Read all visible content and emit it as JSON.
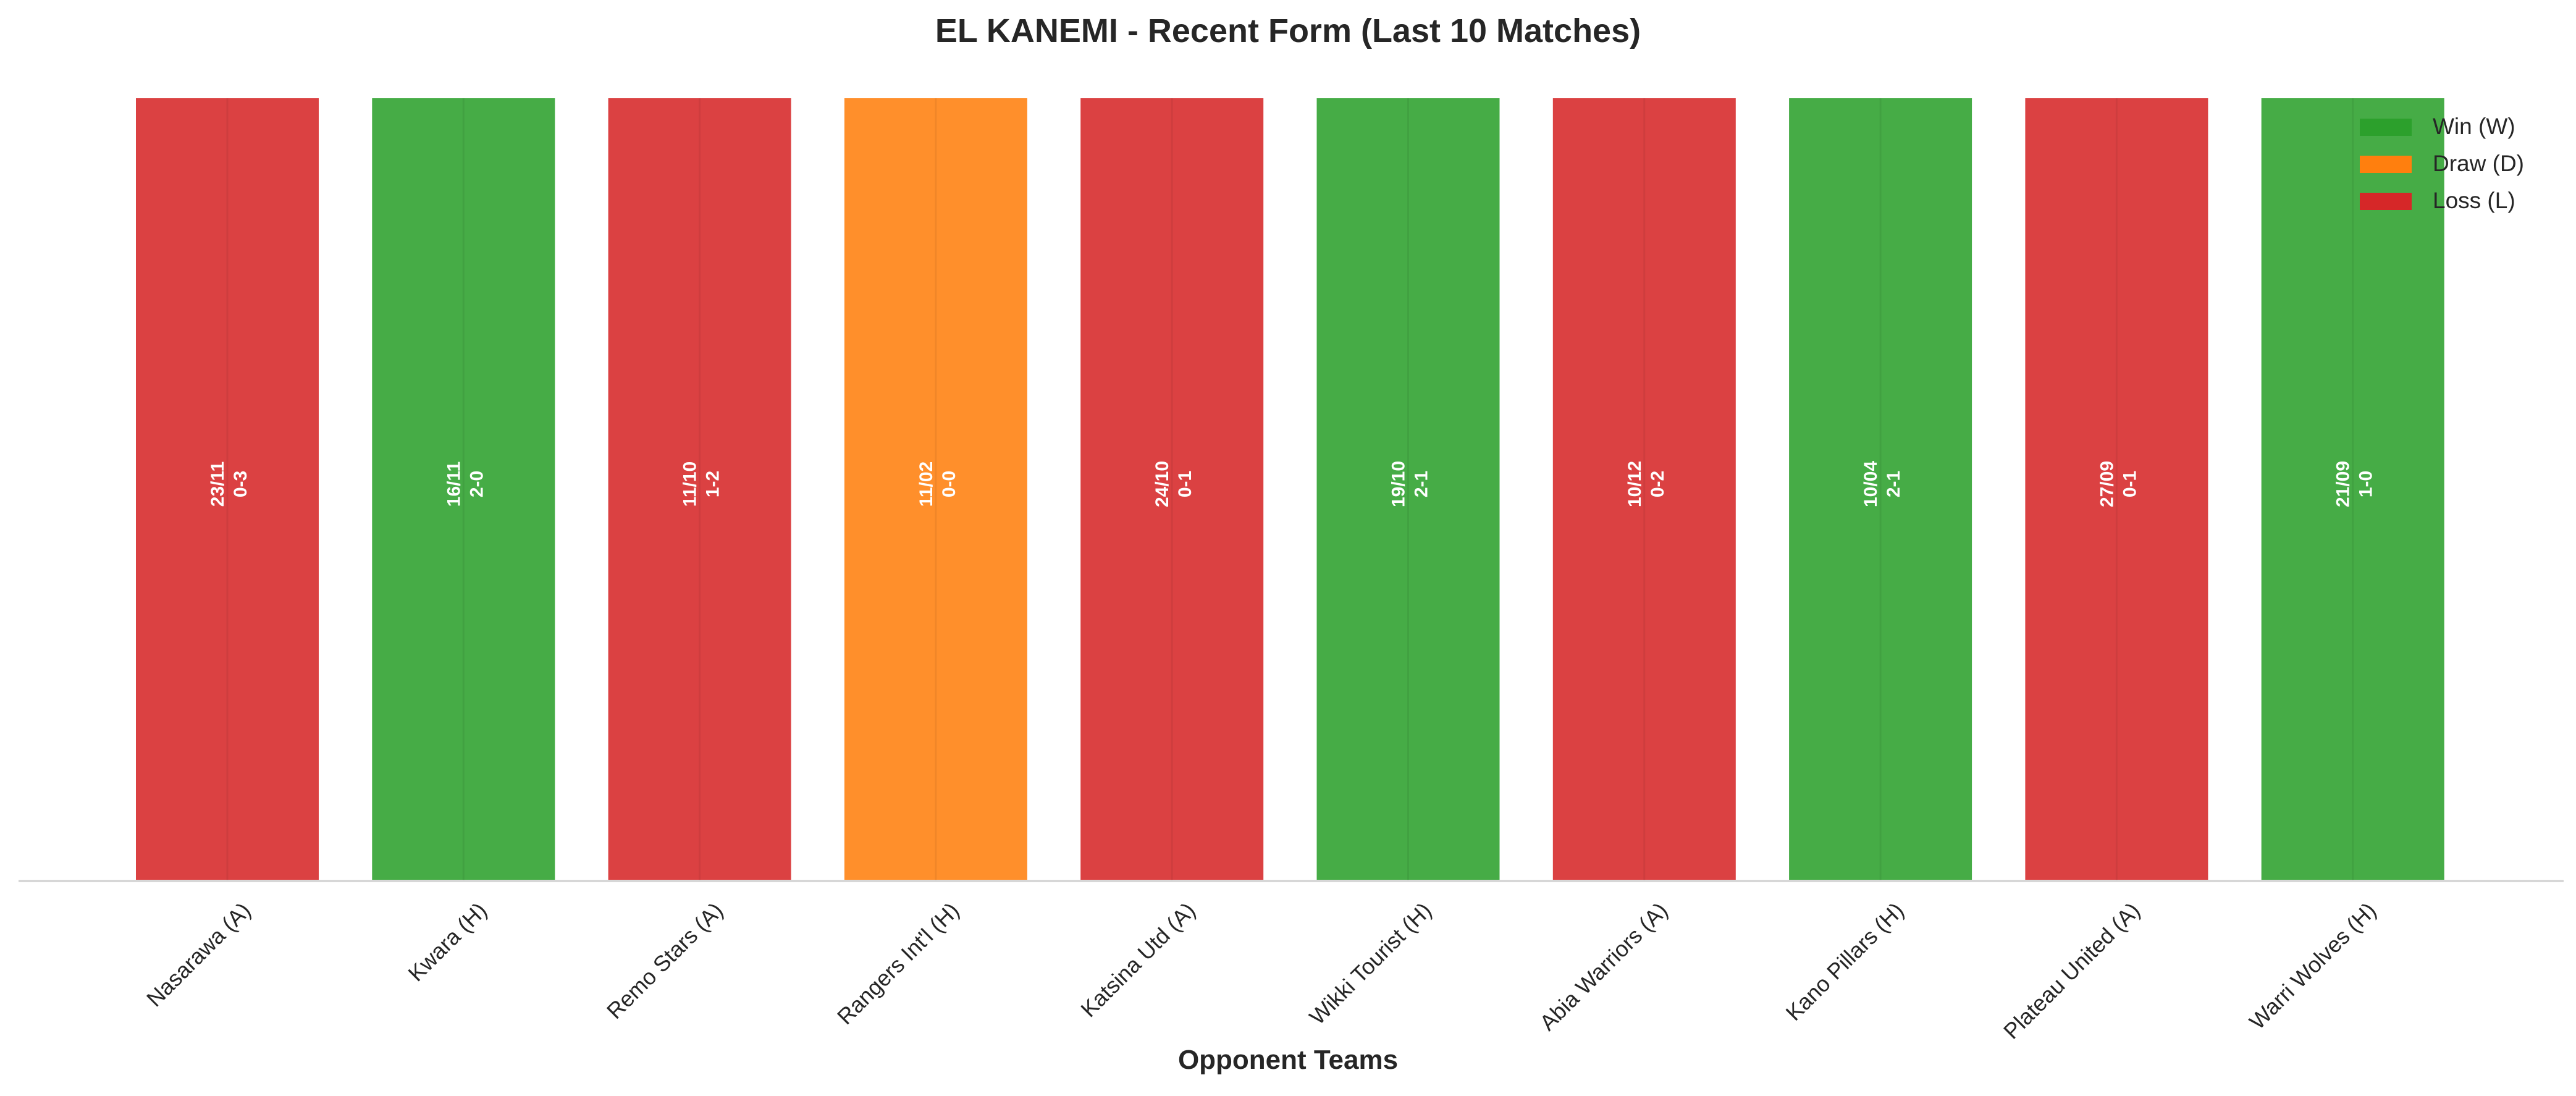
{
  "chart_data": {
    "type": "bar",
    "title": "EL KANEMI - Recent Form (Last 10 Matches)",
    "xlabel": "Opponent Teams",
    "ylabel": "",
    "categories": [
      "Nasarawa (A)",
      "Kwara (H)",
      "Remo Stars (A)",
      "Rangers Int'l (H)",
      "Katsina Utd (A)",
      "Wikki Tourist (H)",
      "Abia Warriors (A)",
      "Kano Pillars (H)",
      "Plateau United (A)",
      "Warri Wolves (H)"
    ],
    "values": [
      1,
      1,
      1,
      1,
      1,
      1,
      1,
      1,
      1,
      1
    ],
    "results": [
      "L",
      "W",
      "L",
      "D",
      "L",
      "W",
      "L",
      "W",
      "L",
      "W"
    ],
    "dates": [
      "23/11",
      "16/11",
      "11/10",
      "11/02",
      "24/10",
      "19/10",
      "10/12",
      "10/04",
      "27/09",
      "21/09"
    ],
    "scores": [
      "0-3",
      "2-0",
      "1-2",
      "0-0",
      "0-1",
      "2-1",
      "0-2",
      "2-1",
      "0-1",
      "1-0"
    ],
    "ylim": [
      0,
      1
    ],
    "grid": false,
    "legend": {
      "placement": "top-right",
      "entries": [
        {
          "key": "W",
          "label": "Win (W)"
        },
        {
          "key": "D",
          "label": "Draw (D)"
        },
        {
          "key": "L",
          "label": "Loss (L)"
        }
      ]
    },
    "colors": {
      "W": "#2ca02c",
      "D": "#ff7f0e",
      "L": "#d62728"
    }
  }
}
